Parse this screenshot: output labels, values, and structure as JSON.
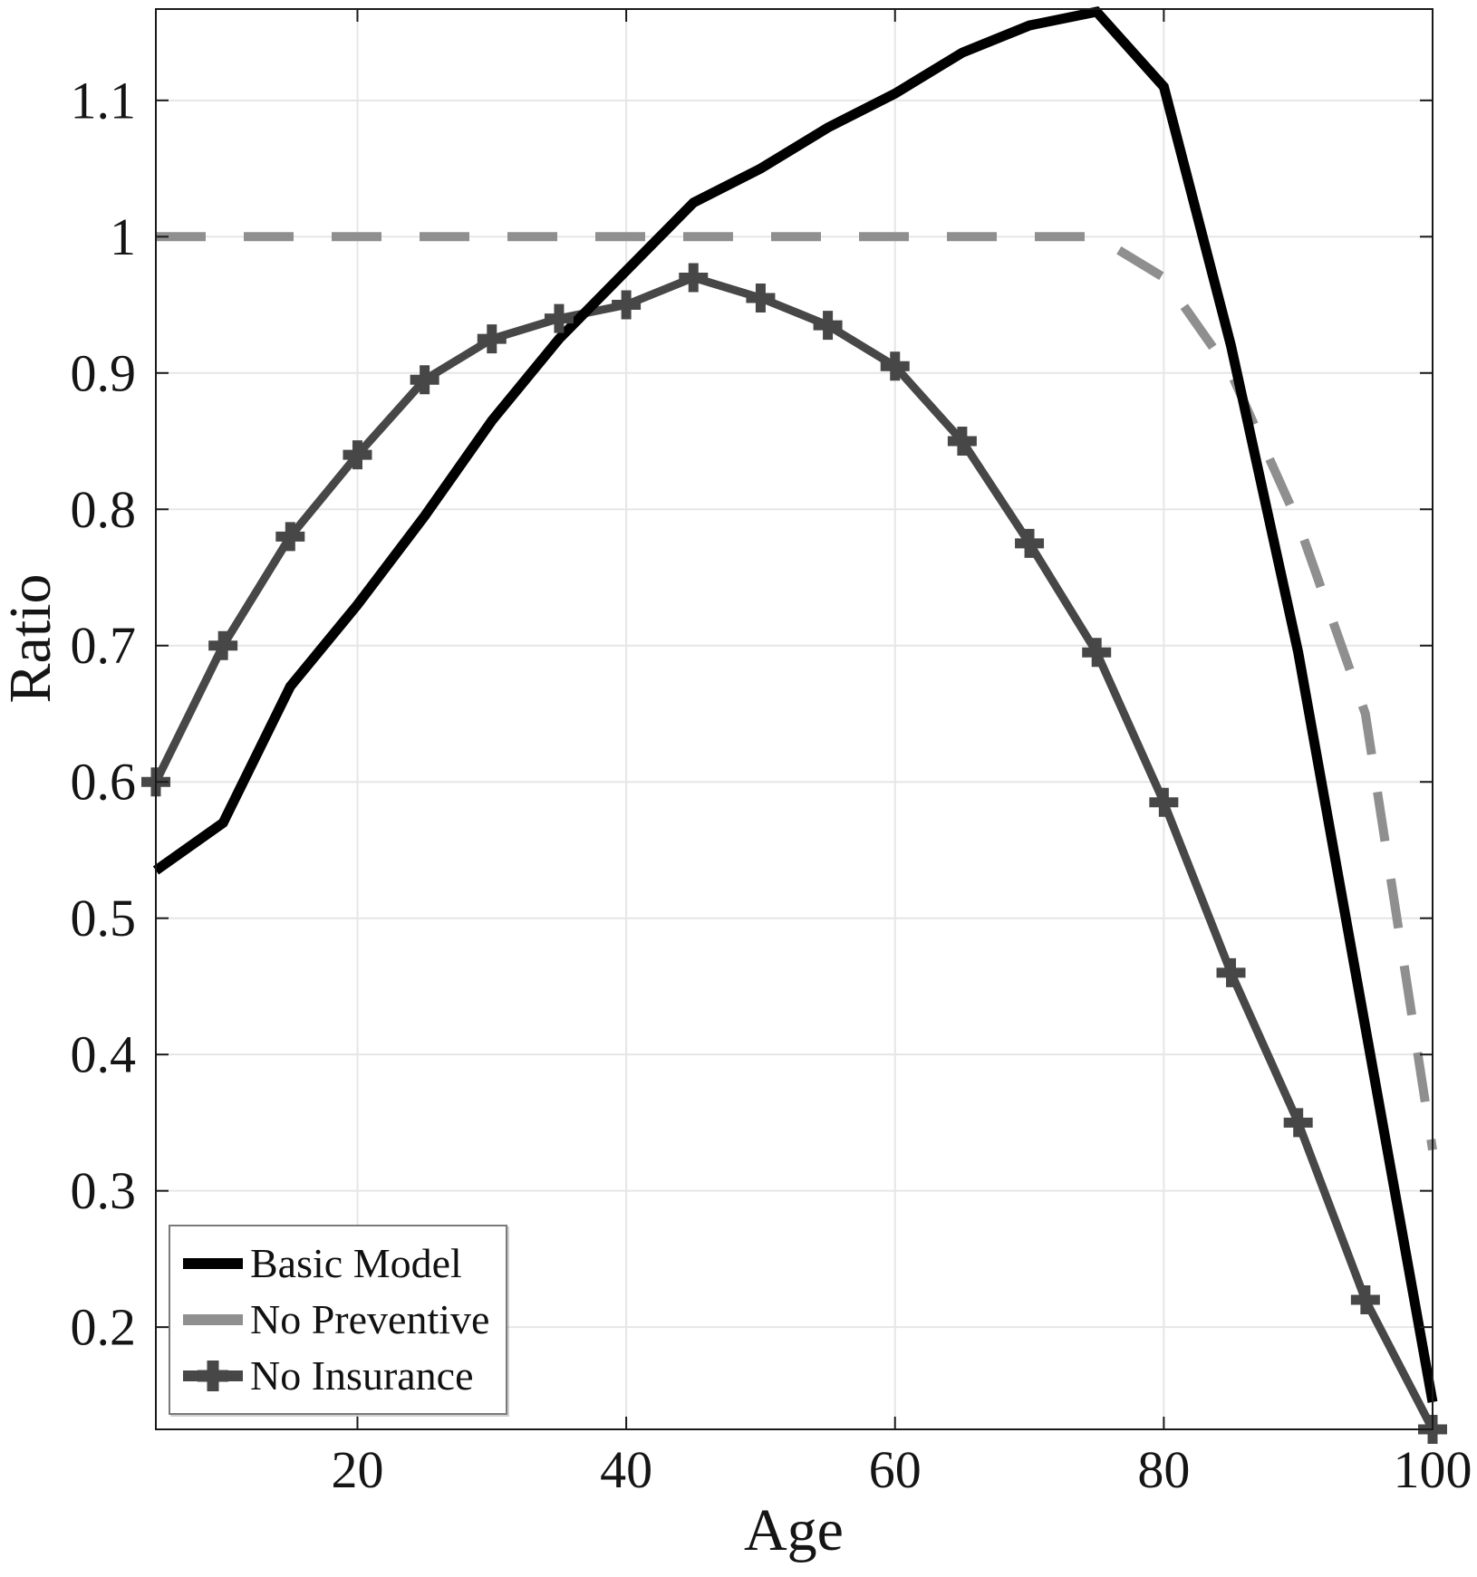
{
  "chart_data": {
    "type": "line",
    "title": "",
    "xlabel": "Age",
    "ylabel": "Ratio",
    "x": [
      5,
      10,
      15,
      20,
      25,
      30,
      35,
      40,
      45,
      50,
      55,
      60,
      65,
      70,
      75,
      80,
      85,
      90,
      95,
      100
    ],
    "series": [
      {
        "name": "Basic Model",
        "color": "#000000",
        "style": "solid",
        "marker": "none",
        "line_width": 11,
        "values": [
          0.535,
          0.57,
          0.67,
          0.73,
          0.795,
          0.865,
          0.925,
          0.975,
          1.025,
          1.05,
          1.08,
          1.105,
          1.135,
          1.155,
          1.165,
          1.11,
          0.92,
          0.695,
          0.42,
          0.145
        ]
      },
      {
        "name": "No Preventive",
        "color": "#8f8f8f",
        "style": "dashed",
        "marker": "none",
        "line_width": 10,
        "values": [
          1.0,
          1.0,
          1.0,
          1.0,
          1.0,
          1.0,
          1.0,
          1.0,
          1.0,
          1.0,
          1.0,
          1.0,
          1.0,
          1.0,
          1.0,
          0.97,
          0.9,
          0.79,
          0.65,
          0.33
        ]
      },
      {
        "name": "No Insurance",
        "color": "#474747",
        "style": "solid",
        "marker": "plus",
        "line_width": 9,
        "values": [
          0.6,
          0.7,
          0.78,
          0.84,
          0.895,
          0.925,
          0.94,
          0.95,
          0.97,
          0.955,
          0.935,
          0.905,
          0.85,
          0.775,
          0.695,
          0.585,
          0.46,
          0.35,
          0.22,
          0.125
        ]
      }
    ],
    "xticks": {
      "values": [
        20,
        40,
        60,
        80,
        100
      ],
      "labels": [
        "20",
        "40",
        "60",
        "80",
        "100"
      ]
    },
    "yticks": {
      "values": [
        0.2,
        0.3,
        0.4,
        0.5,
        0.6,
        0.7,
        0.8,
        0.9,
        1.0,
        1.1
      ],
      "labels": [
        "0.2",
        "0.3",
        "0.4",
        "0.5",
        "0.6",
        "0.7",
        "0.8",
        "0.9",
        "1",
        "1.1"
      ]
    },
    "xlim": [
      5,
      100
    ],
    "ylim": [
      0.125,
      1.167
    ],
    "grid": true,
    "legend_position": "bottom-left",
    "colors": {
      "background": "#ffffff",
      "grid": "#e6e6e6",
      "axis": "#1a1a1a",
      "tick_text": "#151515"
    }
  }
}
